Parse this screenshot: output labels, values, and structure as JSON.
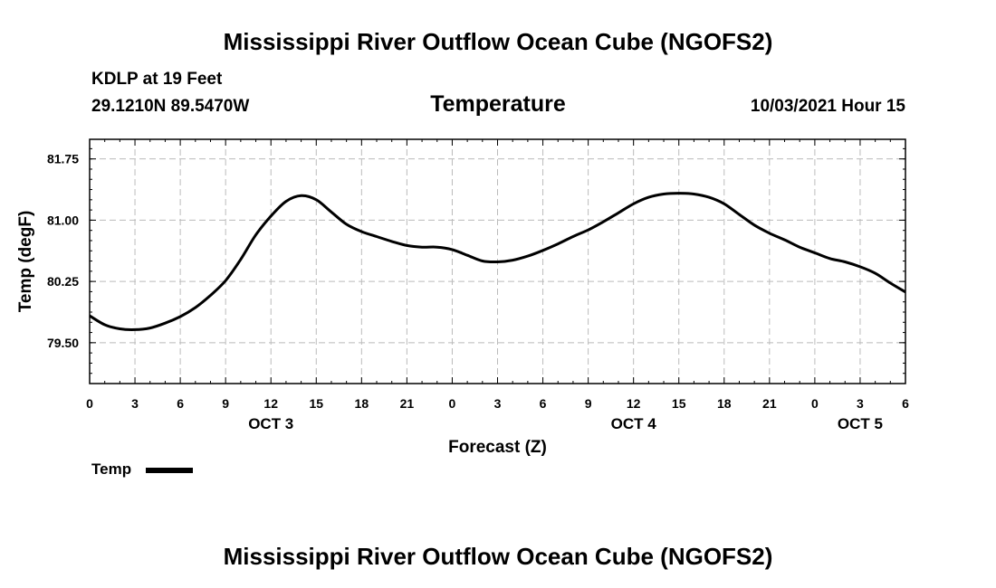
{
  "page": {
    "title_top": "Mississippi River Outflow Ocean Cube (NGOFS2)",
    "title_bottom": "Mississippi River Outflow Ocean Cube (NGOFS2)",
    "station": "KDLP at 19 Feet",
    "coords": "29.1210N  89.5470W",
    "subtitle": "Temperature",
    "date": "10/03/2021 Hour 15"
  },
  "legend": {
    "label": "Temp"
  },
  "chart_data": {
    "type": "line",
    "title": "Temperature",
    "xlabel": "Forecast (Z)",
    "ylabel": "Temp (degF)",
    "xlim": [
      0,
      54
    ],
    "ylim": [
      79.0,
      81.99
    ],
    "yticks": [
      79.5,
      80.25,
      81.0,
      81.75
    ],
    "ytick_labels": [
      "79.50",
      "80.25",
      "81.00",
      "81.75"
    ],
    "xticks": [
      0,
      3,
      6,
      9,
      12,
      15,
      18,
      21,
      24,
      27,
      30,
      33,
      36,
      39,
      42,
      45,
      48,
      51,
      54
    ],
    "xtick_labels": [
      "0",
      "3",
      "6",
      "9",
      "12",
      "15",
      "18",
      "21",
      "0",
      "3",
      "6",
      "9",
      "12",
      "15",
      "18",
      "21",
      "0",
      "3",
      "6"
    ],
    "day_labels": [
      {
        "label": "OCT 3",
        "x": 12
      },
      {
        "label": "OCT 4",
        "x": 36
      },
      {
        "label": "OCT 5",
        "x": 51
      }
    ],
    "grid": true,
    "series": [
      {
        "name": "Temp",
        "color": "#000000",
        "x": [
          0,
          1,
          2,
          3,
          4,
          5,
          6,
          7,
          8,
          9,
          10,
          11,
          12,
          13,
          14,
          15,
          16,
          17,
          18,
          19,
          20,
          21,
          22,
          23,
          24,
          25,
          26,
          27,
          28,
          29,
          30,
          31,
          32,
          33,
          34,
          35,
          36,
          37,
          38,
          39,
          40,
          41,
          42,
          43,
          44,
          45,
          46,
          47,
          48,
          49,
          50,
          51,
          52,
          53,
          54
        ],
        "values": [
          79.83,
          79.72,
          79.67,
          79.66,
          79.68,
          79.74,
          79.82,
          79.93,
          80.08,
          80.26,
          80.52,
          80.82,
          81.05,
          81.23,
          81.3,
          81.25,
          81.1,
          80.95,
          80.86,
          80.8,
          80.74,
          80.69,
          80.67,
          80.67,
          80.64,
          80.57,
          80.5,
          80.49,
          80.51,
          80.56,
          80.63,
          80.71,
          80.8,
          80.88,
          80.98,
          81.09,
          81.2,
          81.28,
          81.32,
          81.33,
          81.32,
          81.28,
          81.2,
          81.07,
          80.94,
          80.84,
          80.76,
          80.67,
          80.6,
          80.53,
          80.49,
          80.43,
          80.35,
          80.23,
          80.12
        ]
      }
    ]
  }
}
